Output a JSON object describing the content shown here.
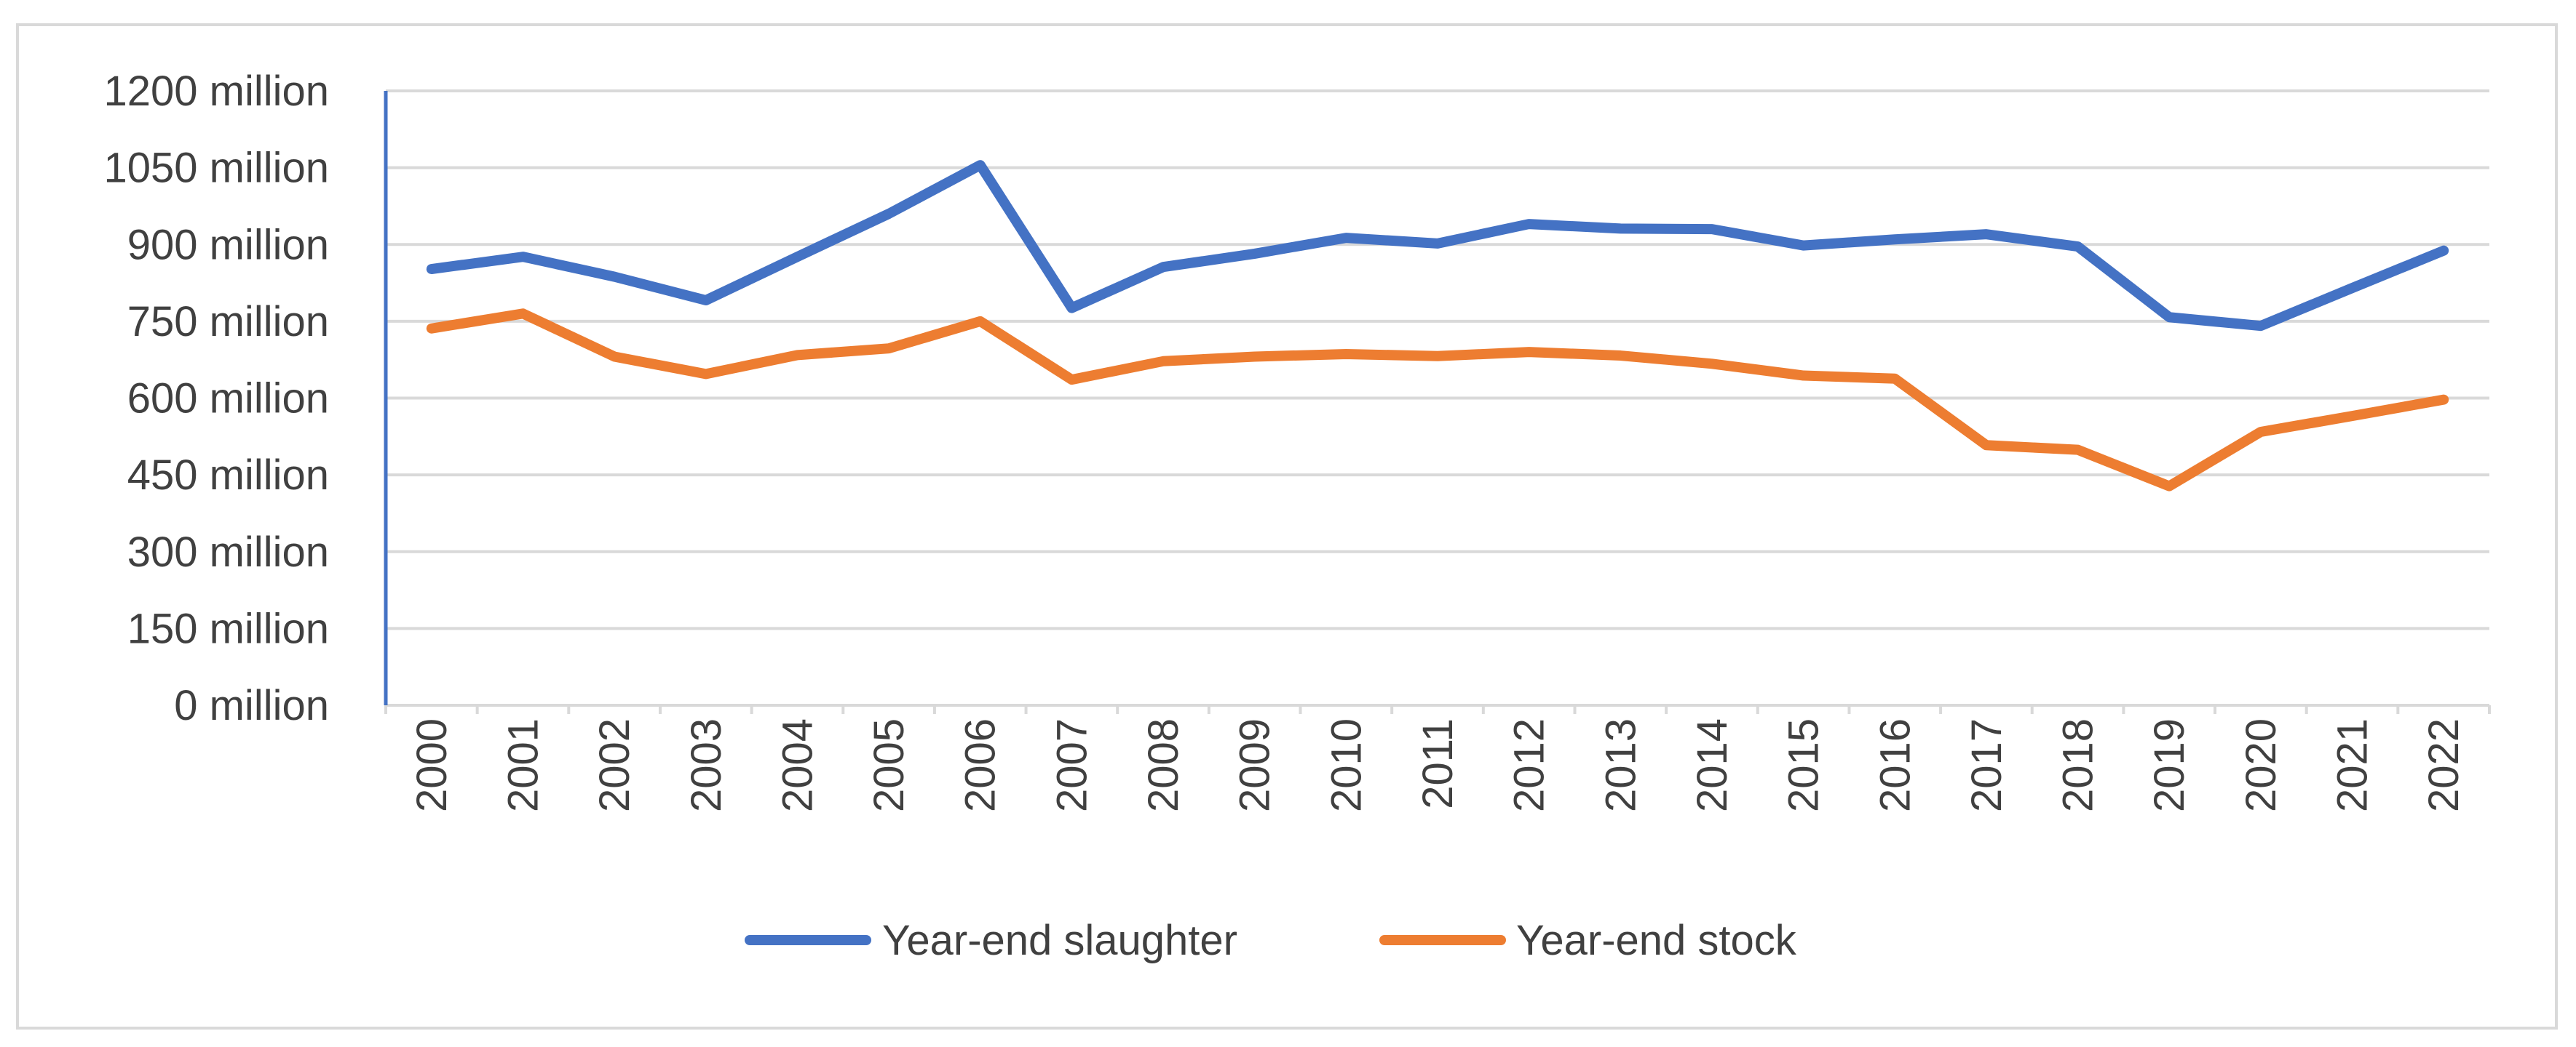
{
  "chart_data": {
    "type": "line",
    "title": "",
    "xlabel": "",
    "ylabel": "",
    "ylim": [
      0,
      1200
    ],
    "yticks": [
      0,
      150,
      300,
      450,
      600,
      750,
      900,
      1050,
      1200
    ],
    "ytick_suffix": " million",
    "ytick_labels": [
      "0 million",
      "150 million",
      "300 million",
      "450 million",
      "600 million",
      "750 million",
      "900 million",
      "1050 million",
      "1200 million"
    ],
    "categories": [
      "2000",
      "2001",
      "2002",
      "2003",
      "2004",
      "2005",
      "2006",
      "2007",
      "2008",
      "2009",
      "2010",
      "2011",
      "2012",
      "2013",
      "2014",
      "2015",
      "2016",
      "2017",
      "2018",
      "2019",
      "2020",
      "2021",
      "2022"
    ],
    "grid": true,
    "legend_position": "bottom",
    "series": [
      {
        "name": "Year-end slaughter",
        "color": "#4472c4",
        "values": [
          852,
          876,
          837,
          791,
          876,
          960,
          1055,
          776,
          856,
          882,
          913,
          902,
          940,
          931,
          930,
          898,
          910,
          920,
          896,
          758,
          741,
          815,
          888
        ]
      },
      {
        "name": "Year-end stock",
        "color": "#ed7d31",
        "values": [
          736,
          765,
          681,
          647,
          684,
          697,
          750,
          636,
          672,
          681,
          686,
          682,
          690,
          683,
          667,
          644,
          638,
          508,
          499,
          428,
          534,
          565,
          597
        ]
      }
    ]
  }
}
